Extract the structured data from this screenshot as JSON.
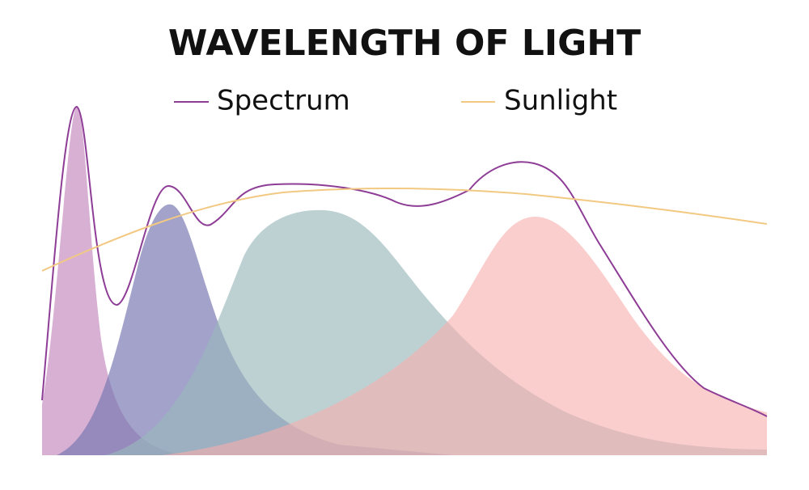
{
  "header": {
    "title": "WAVELENGTH OF LIGHT"
  },
  "legend": {
    "items": [
      {
        "label": "Spectrum"
      },
      {
        "label": "Sunlight"
      }
    ]
  }
}
